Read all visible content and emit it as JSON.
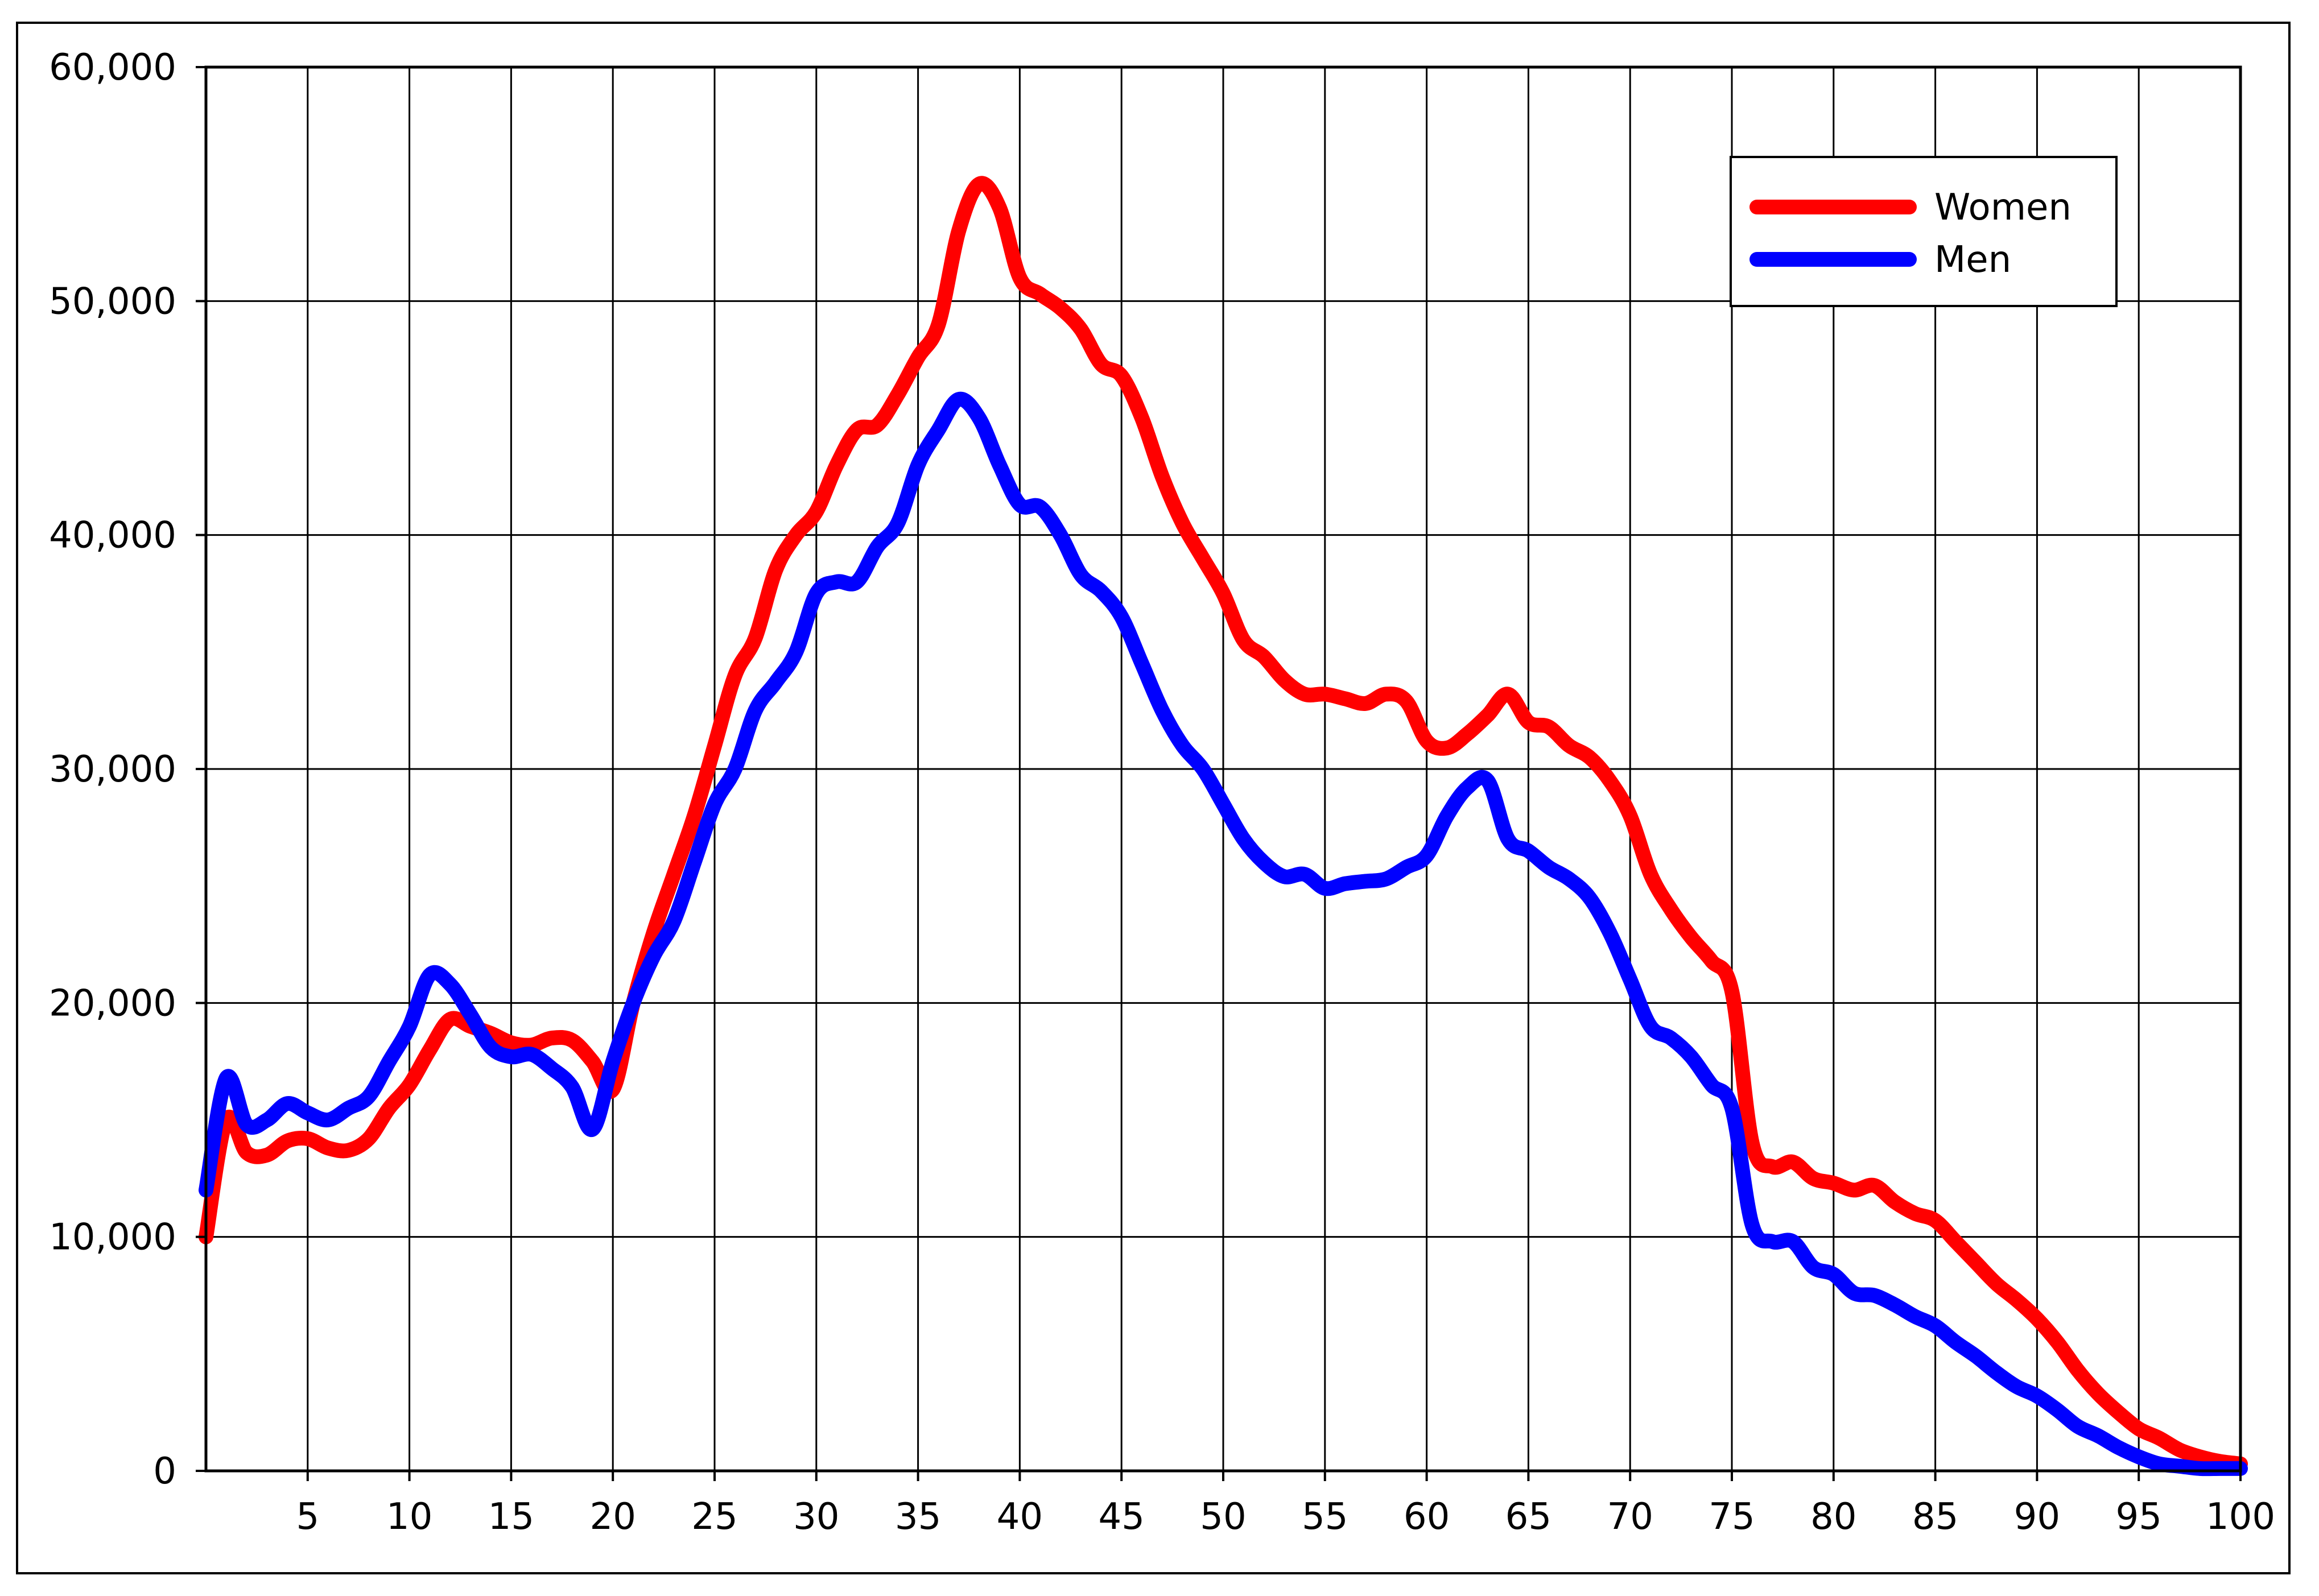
{
  "chart_data": {
    "type": "line",
    "title": "",
    "xlabel": "",
    "ylabel": "",
    "xlim": [
      0,
      100
    ],
    "ylim": [
      0,
      60000
    ],
    "grid": true,
    "legend_position": "top-right",
    "x_ticks": [
      5,
      10,
      15,
      20,
      25,
      30,
      35,
      40,
      45,
      50,
      55,
      60,
      65,
      70,
      75,
      80,
      85,
      90,
      95,
      100
    ],
    "x_tick_labels": [
      "5",
      "10",
      "15",
      "20",
      "25",
      "30",
      "35",
      "40",
      "45",
      "50",
      "55",
      "60",
      "65",
      "70",
      "75",
      "80",
      "85",
      "90",
      "95",
      "100"
    ],
    "y_ticks": [
      0,
      10000,
      20000,
      30000,
      40000,
      50000,
      60000
    ],
    "y_tick_labels": [
      "0",
      "10,000",
      "20,000",
      "30,000",
      "40,000",
      "50,000",
      "60,000"
    ],
    "series": [
      {
        "name": "Women",
        "color": "#ff0000",
        "x": [
          0,
          1,
          2,
          3,
          4,
          5,
          6,
          7,
          8,
          9,
          10,
          11,
          12,
          13,
          14,
          15,
          16,
          17,
          18,
          19,
          20,
          21,
          22,
          23,
          24,
          25,
          26,
          27,
          28,
          29,
          30,
          31,
          32,
          33,
          34,
          35,
          36,
          37,
          38,
          39,
          40,
          41,
          42,
          43,
          44,
          45,
          46,
          47,
          48,
          49,
          50,
          51,
          52,
          53,
          54,
          55,
          56,
          57,
          58,
          59,
          60,
          61,
          62,
          63,
          64,
          65,
          66,
          67,
          68,
          69,
          70,
          71,
          72,
          73,
          74,
          75,
          76,
          77,
          78,
          79,
          80,
          81,
          82,
          83,
          84,
          85,
          86,
          87,
          88,
          89,
          90,
          91,
          92,
          93,
          94,
          95,
          96,
          97,
          98,
          99,
          100
        ],
        "values": [
          10000,
          15000,
          13600,
          13500,
          14100,
          14200,
          13800,
          13700,
          14200,
          15500,
          16500,
          18000,
          19300,
          19000,
          18700,
          18300,
          18200,
          18500,
          18400,
          17500,
          16300,
          20000,
          23000,
          25500,
          28000,
          31000,
          34000,
          35600,
          38500,
          40000,
          41000,
          43000,
          44500,
          44700,
          46000,
          47600,
          49000,
          53000,
          55000,
          54000,
          51000,
          50300,
          49700,
          48800,
          47300,
          46800,
          45000,
          42500,
          40500,
          39000,
          37500,
          35500,
          34800,
          33800,
          33200,
          33200,
          33000,
          32800,
          33200,
          32900,
          31200,
          30900,
          31500,
          32300,
          33200,
          32000,
          31800,
          31000,
          30500,
          29500,
          28000,
          25500,
          24000,
          22800,
          21800,
          20500,
          14000,
          13000,
          13200,
          12500,
          12300,
          12000,
          12200,
          11500,
          11000,
          10700,
          9800,
          8900,
          8000,
          7300,
          6500,
          5500,
          4300,
          3300,
          2500,
          1800,
          1400,
          900,
          600,
          400,
          300
        ]
      },
      {
        "name": "Men",
        "color": "#0000ff",
        "x": [
          0,
          1,
          2,
          3,
          4,
          5,
          6,
          7,
          8,
          9,
          10,
          11,
          12,
          13,
          14,
          15,
          16,
          17,
          18,
          19,
          20,
          21,
          22,
          23,
          24,
          25,
          26,
          27,
          28,
          29,
          30,
          31,
          32,
          33,
          34,
          35,
          36,
          37,
          38,
          39,
          40,
          41,
          42,
          43,
          44,
          45,
          46,
          47,
          48,
          49,
          50,
          51,
          52,
          53,
          54,
          55,
          56,
          57,
          58,
          59,
          60,
          61,
          62,
          63,
          64,
          65,
          66,
          67,
          68,
          69,
          70,
          71,
          72,
          73,
          74,
          75,
          76,
          77,
          78,
          79,
          80,
          81,
          82,
          83,
          84,
          85,
          86,
          87,
          88,
          89,
          90,
          91,
          92,
          93,
          94,
          95,
          96,
          97,
          98,
          99,
          100
        ],
        "values": [
          12000,
          16800,
          14800,
          15000,
          15700,
          15300,
          15000,
          15500,
          16000,
          17500,
          19000,
          21200,
          20800,
          19500,
          18100,
          17700,
          17800,
          17200,
          16400,
          14600,
          17500,
          20000,
          22000,
          23500,
          26000,
          28500,
          30000,
          32500,
          33700,
          35000,
          37500,
          38000,
          38000,
          39500,
          40500,
          43000,
          44500,
          45800,
          45000,
          43000,
          41300,
          41200,
          40000,
          38300,
          37600,
          36500,
          34500,
          32500,
          31000,
          30000,
          28500,
          27000,
          26000,
          25400,
          25500,
          24900,
          25100,
          25200,
          25300,
          25800,
          26300,
          28000,
          29200,
          29500,
          27000,
          26500,
          25800,
          25300,
          24500,
          23000,
          21000,
          19000,
          18500,
          17700,
          16500,
          15500,
          10500,
          9800,
          9800,
          8700,
          8400,
          7600,
          7500,
          7100,
          6600,
          6200,
          5500,
          4900,
          4200,
          3600,
          3200,
          2600,
          1900,
          1500,
          1000,
          600,
          300,
          200,
          100,
          100,
          100
        ]
      }
    ]
  }
}
